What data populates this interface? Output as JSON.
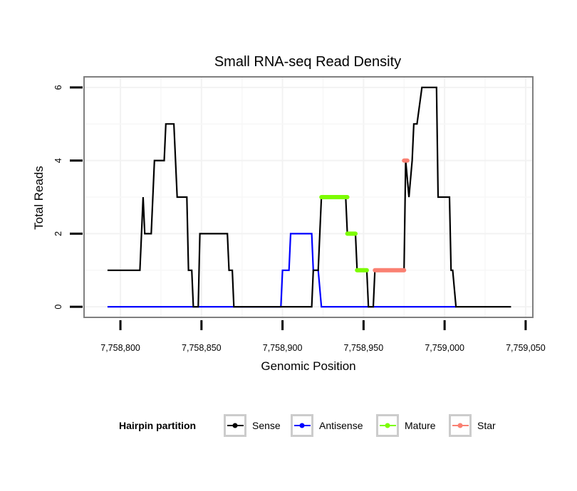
{
  "chart_data": {
    "type": "line",
    "title": "Small RNA-seq Read Density",
    "xlabel": "Genomic Position",
    "ylabel": "Total Reads",
    "xlim": [
      7758778,
      7759054
    ],
    "ylim": [
      -0.27,
      6.27
    ],
    "x_ticks": [
      7758800,
      7758850,
      7758900,
      7758950,
      7759000,
      7759050
    ],
    "x_tick_labels": [
      "7,758,800",
      "7,758,850",
      "7,758,900",
      "7,758,950",
      "7,759,000",
      "7,759,050"
    ],
    "y_ticks": [
      0,
      2,
      4,
      6
    ],
    "y_tick_labels": [
      "0",
      "2",
      "4",
      "6"
    ],
    "grid": true,
    "legend": {
      "title": "Hairpin partition",
      "placement": "bottom",
      "entries": [
        {
          "label": "Sense",
          "color": "#000000"
        },
        {
          "label": "Antisense",
          "color": "#0000ff"
        },
        {
          "label": "Mature",
          "color": "#7cfc00"
        },
        {
          "label": "Star",
          "color": "#fa8072"
        }
      ]
    },
    "series": [
      {
        "name": "Sense",
        "color": "#000000",
        "points": [
          [
            7758792,
            1
          ],
          [
            7758812,
            1
          ],
          [
            7758814,
            3
          ],
          [
            7758815,
            2
          ],
          [
            7758819,
            2
          ],
          [
            7758821,
            4
          ],
          [
            7758827,
            4
          ],
          [
            7758828,
            5
          ],
          [
            7758833,
            5
          ],
          [
            7758835,
            3
          ],
          [
            7758841,
            3
          ],
          [
            7758842,
            1
          ],
          [
            7758844,
            1
          ],
          [
            7758845,
            0
          ],
          [
            7758848,
            0
          ],
          [
            7758849,
            2
          ],
          [
            7758866,
            2
          ],
          [
            7758867,
            1
          ],
          [
            7758869,
            1
          ],
          [
            7758870,
            0
          ],
          [
            7758918,
            0
          ],
          [
            7758919,
            1
          ],
          [
            7758922,
            1
          ],
          [
            7758924,
            3
          ],
          [
            7758939,
            3
          ],
          [
            7758940,
            2
          ],
          [
            7758945,
            2
          ],
          [
            7758946,
            1
          ],
          [
            7758952,
            1
          ],
          [
            7758953,
            0
          ],
          [
            7758956,
            0
          ],
          [
            7758957,
            1
          ],
          [
            7758975,
            1
          ],
          [
            7758976,
            4
          ],
          [
            7758978,
            3
          ],
          [
            7758980,
            4
          ],
          [
            7758981,
            5
          ],
          [
            7758983,
            5
          ],
          [
            7758986,
            6
          ],
          [
            7758995,
            6
          ],
          [
            7758996,
            3
          ],
          [
            7759003,
            3
          ],
          [
            7759004,
            1
          ],
          [
            7759005,
            1
          ],
          [
            7759007,
            0
          ],
          [
            7759041,
            0
          ]
        ]
      },
      {
        "name": "Antisense",
        "color": "#0000ff",
        "points": [
          [
            7758792,
            0
          ],
          [
            7758899,
            0
          ],
          [
            7758900,
            1
          ],
          [
            7758904,
            1
          ],
          [
            7758905,
            2
          ],
          [
            7758918,
            2
          ],
          [
            7758919,
            1
          ],
          [
            7758922,
            1
          ],
          [
            7758924,
            0
          ],
          [
            7759007,
            0
          ]
        ]
      },
      {
        "name": "Mature",
        "color": "#7cfc00",
        "segments": [
          {
            "x": [
              7758924,
              7758940
            ],
            "y": 3
          },
          {
            "x": [
              7758940,
              7758945
            ],
            "y": 2
          },
          {
            "x": [
              7758946,
              7758952
            ],
            "y": 1
          }
        ]
      },
      {
        "name": "Star",
        "color": "#fa8072",
        "segments": [
          {
            "x": [
              7758957,
              7758975
            ],
            "y": 1
          },
          {
            "x": [
              7758975,
              7758977
            ],
            "y": 4
          }
        ]
      }
    ]
  }
}
